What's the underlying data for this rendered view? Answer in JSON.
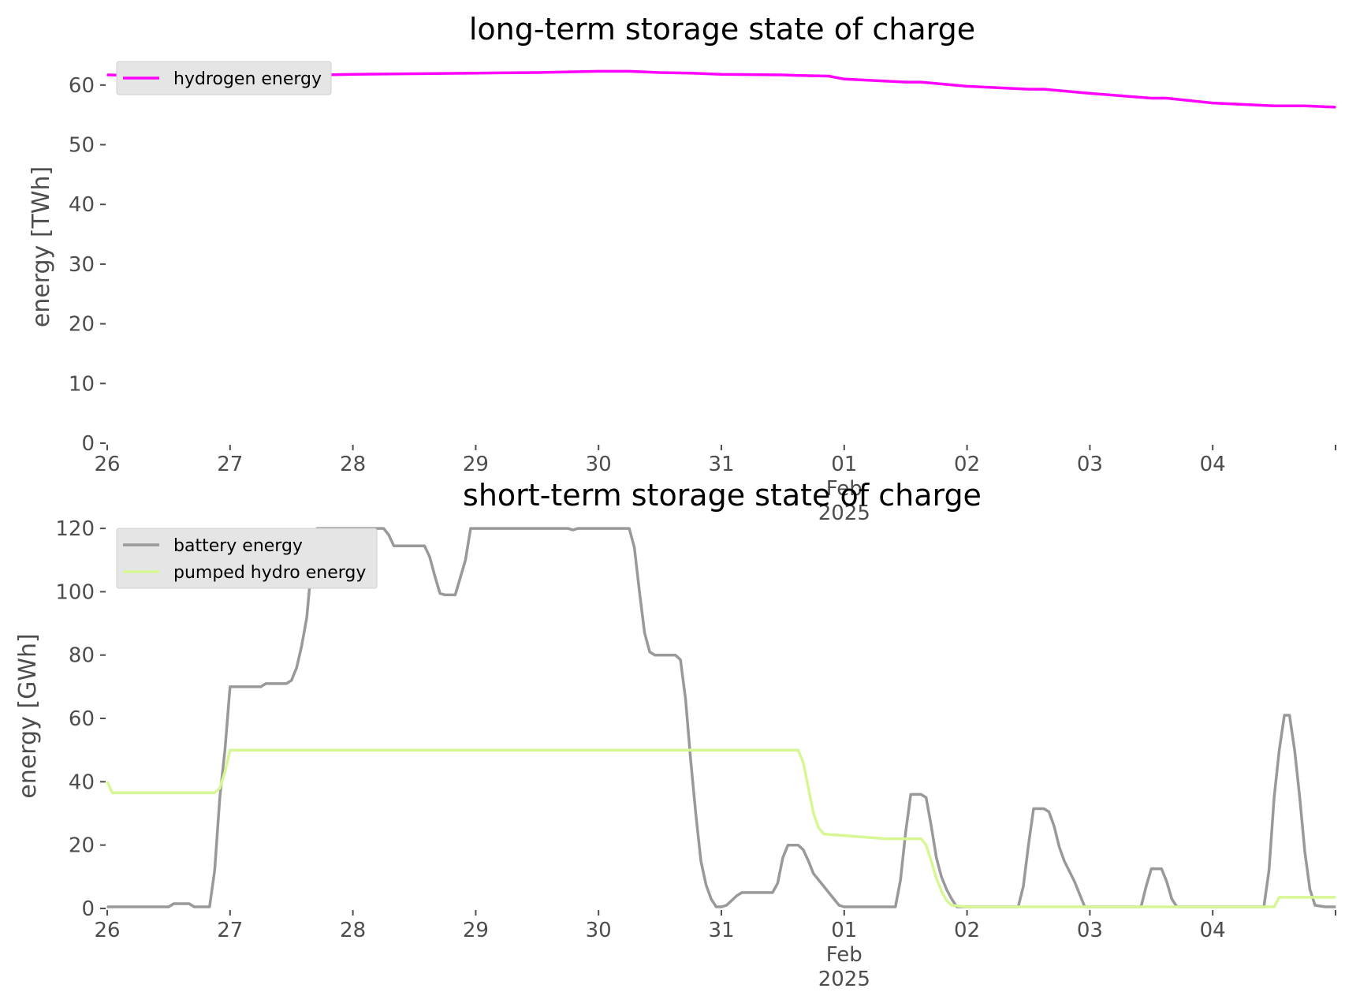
{
  "chart_data": [
    {
      "type": "line",
      "title": "long-term storage state of charge",
      "xlabel": "",
      "ylabel": "energy [TWh]",
      "xlim": [
        "2025-01-26",
        "2025-02-05"
      ],
      "ylim": [
        0,
        65
      ],
      "yticks": [
        0,
        10,
        20,
        30,
        40,
        50,
        60
      ],
      "xticks": [
        {
          "date": "2025-01-26",
          "label": "26"
        },
        {
          "date": "2025-01-27",
          "label": "27"
        },
        {
          "date": "2025-01-28",
          "label": "28"
        },
        {
          "date": "2025-01-29",
          "label": "29"
        },
        {
          "date": "2025-01-30",
          "label": "30"
        },
        {
          "date": "2025-01-31",
          "label": "31"
        },
        {
          "date": "2025-02-01",
          "label": "01",
          "sublabels": [
            "Feb",
            "2025"
          ]
        },
        {
          "date": "2025-02-02",
          "label": "02"
        },
        {
          "date": "2025-02-03",
          "label": "03"
        },
        {
          "date": "2025-02-04",
          "label": "04"
        },
        {
          "date": "2025-02-05",
          "label": ""
        }
      ],
      "grid": false,
      "legend_position": "upper-left",
      "series": [
        {
          "name": "hydrogen energy",
          "color": "#ff00ff",
          "points": [
            [
              "2025-01-26 00:00",
              61.7
            ],
            [
              "2025-01-26 12:00",
              61.5
            ],
            [
              "2025-01-27 00:00",
              61.5
            ],
            [
              "2025-01-27 12:00",
              61.6
            ],
            [
              "2025-01-28 00:00",
              61.8
            ],
            [
              "2025-01-28 12:00",
              61.9
            ],
            [
              "2025-01-29 00:00",
              62.0
            ],
            [
              "2025-01-29 12:00",
              62.1
            ],
            [
              "2025-01-30 00:00",
              62.3
            ],
            [
              "2025-01-30 06:00",
              62.3
            ],
            [
              "2025-01-30 12:00",
              62.1
            ],
            [
              "2025-01-30 18:00",
              62.0
            ],
            [
              "2025-01-31 00:00",
              61.8
            ],
            [
              "2025-01-31 12:00",
              61.7
            ],
            [
              "2025-01-31 15:00",
              61.6
            ],
            [
              "2025-01-31 21:00",
              61.5
            ],
            [
              "2025-02-01 00:00",
              61.0
            ],
            [
              "2025-02-01 12:00",
              60.5
            ],
            [
              "2025-02-01 15:00",
              60.5
            ],
            [
              "2025-02-02 00:00",
              59.8
            ],
            [
              "2025-02-02 12:00",
              59.3
            ],
            [
              "2025-02-02 15:00",
              59.3
            ],
            [
              "2025-02-03 00:00",
              58.6
            ],
            [
              "2025-02-03 12:00",
              57.8
            ],
            [
              "2025-02-03 15:00",
              57.8
            ],
            [
              "2025-02-04 00:00",
              57.0
            ],
            [
              "2025-02-04 12:00",
              56.5
            ],
            [
              "2025-02-04 18:00",
              56.5
            ],
            [
              "2025-02-05 00:00",
              56.3
            ]
          ]
        }
      ]
    },
    {
      "type": "line",
      "title": "short-term storage state of charge",
      "xlabel": "",
      "ylabel": "energy [GWh]",
      "xlim": [
        "2025-01-26",
        "2025-02-05"
      ],
      "ylim": [
        0,
        125
      ],
      "yticks": [
        0,
        20,
        40,
        60,
        80,
        100,
        120
      ],
      "xticks": [
        {
          "date": "2025-01-26",
          "label": "26"
        },
        {
          "date": "2025-01-27",
          "label": "27"
        },
        {
          "date": "2025-01-28",
          "label": "28"
        },
        {
          "date": "2025-01-29",
          "label": "29"
        },
        {
          "date": "2025-01-30",
          "label": "30"
        },
        {
          "date": "2025-01-31",
          "label": "31"
        },
        {
          "date": "2025-02-01",
          "label": "01",
          "sublabels": [
            "Feb",
            "2025"
          ]
        },
        {
          "date": "2025-02-02",
          "label": "02"
        },
        {
          "date": "2025-02-03",
          "label": "03"
        },
        {
          "date": "2025-02-04",
          "label": "04"
        },
        {
          "date": "2025-02-05",
          "label": ""
        }
      ],
      "grid": false,
      "legend_position": "upper-left",
      "series": [
        {
          "name": "battery energy",
          "color": "#999999",
          "points": [
            [
              "2025-01-26 00:00",
              0.5
            ],
            [
              "2025-01-26 12:00",
              0.5
            ],
            [
              "2025-01-26 13:00",
              1.5
            ],
            [
              "2025-01-26 16:00",
              1.5
            ],
            [
              "2025-01-26 17:00",
              0.5
            ],
            [
              "2025-01-26 20:00",
              0.5
            ],
            [
              "2025-01-26 21:00",
              12
            ],
            [
              "2025-01-26 22:00",
              35
            ],
            [
              "2025-01-26 23:00",
              50
            ],
            [
              "2025-01-27 00:00",
              70
            ],
            [
              "2025-01-27 06:00",
              70
            ],
            [
              "2025-01-27 07:00",
              71
            ],
            [
              "2025-01-27 11:00",
              71
            ],
            [
              "2025-01-27 12:00",
              72
            ],
            [
              "2025-01-27 13:00",
              76
            ],
            [
              "2025-01-27 14:00",
              83
            ],
            [
              "2025-01-27 15:00",
              92
            ],
            [
              "2025-01-27 16:00",
              110
            ],
            [
              "2025-01-27 17:00",
              120
            ],
            [
              "2025-01-28 06:00",
              120
            ],
            [
              "2025-01-28 07:00",
              118
            ],
            [
              "2025-01-28 08:00",
              114.5
            ],
            [
              "2025-01-28 14:00",
              114.5
            ],
            [
              "2025-01-28 15:00",
              111
            ],
            [
              "2025-01-28 16:00",
              105
            ],
            [
              "2025-01-28 17:00",
              99.5
            ],
            [
              "2025-01-28 18:00",
              99
            ],
            [
              "2025-01-28 20:00",
              99
            ],
            [
              "2025-01-28 22:00",
              110
            ],
            [
              "2025-01-28 23:00",
              120
            ],
            [
              "2025-01-29 18:00",
              120
            ],
            [
              "2025-01-29 19:00",
              119.5
            ],
            [
              "2025-01-29 20:00",
              120
            ],
            [
              "2025-01-30 06:00",
              120
            ],
            [
              "2025-01-30 07:00",
              114
            ],
            [
              "2025-01-30 08:00",
              100
            ],
            [
              "2025-01-30 09:00",
              87
            ],
            [
              "2025-01-30 10:00",
              81
            ],
            [
              "2025-01-30 11:00",
              80
            ],
            [
              "2025-01-30 15:00",
              80
            ],
            [
              "2025-01-30 16:00",
              78.5
            ],
            [
              "2025-01-30 17:00",
              66
            ],
            [
              "2025-01-30 18:00",
              47
            ],
            [
              "2025-01-30 19:00",
              30
            ],
            [
              "2025-01-30 20:00",
              15
            ],
            [
              "2025-01-30 21:00",
              7.5
            ],
            [
              "2025-01-30 22:00",
              3
            ],
            [
              "2025-01-30 23:00",
              0.5
            ],
            [
              "2025-01-31 00:00",
              0.5
            ],
            [
              "2025-01-31 01:00",
              1
            ],
            [
              "2025-01-31 02:00",
              2.5
            ],
            [
              "2025-01-31 03:00",
              4
            ],
            [
              "2025-01-31 04:00",
              5
            ],
            [
              "2025-01-31 10:00",
              5
            ],
            [
              "2025-01-31 11:00",
              8
            ],
            [
              "2025-01-31 12:00",
              16
            ],
            [
              "2025-01-31 13:00",
              20
            ],
            [
              "2025-01-31 15:00",
              20
            ],
            [
              "2025-01-31 16:00",
              18.5
            ],
            [
              "2025-01-31 17:00",
              15
            ],
            [
              "2025-01-31 18:00",
              11
            ],
            [
              "2025-01-31 20:00",
              7
            ],
            [
              "2025-01-31 22:00",
              3
            ],
            [
              "2025-01-31 23:00",
              1
            ],
            [
              "2025-02-01 00:00",
              0.5
            ],
            [
              "2025-02-01 10:00",
              0.5
            ],
            [
              "2025-02-01 11:00",
              9
            ],
            [
              "2025-02-01 12:00",
              24
            ],
            [
              "2025-02-01 13:00",
              36
            ],
            [
              "2025-02-01 15:00",
              36
            ],
            [
              "2025-02-01 16:00",
              35
            ],
            [
              "2025-02-01 17:00",
              26
            ],
            [
              "2025-02-01 18:00",
              16
            ],
            [
              "2025-02-01 19:00",
              10
            ],
            [
              "2025-02-01 20:00",
              6
            ],
            [
              "2025-02-01 21:00",
              3
            ],
            [
              "2025-02-01 22:00",
              0.5
            ],
            [
              "2025-02-02 10:00",
              0.5
            ],
            [
              "2025-02-02 11:00",
              7
            ],
            [
              "2025-02-02 12:00",
              20
            ],
            [
              "2025-02-02 13:00",
              31.5
            ],
            [
              "2025-02-02 15:00",
              31.5
            ],
            [
              "2025-02-02 16:00",
              30.5
            ],
            [
              "2025-02-02 17:00",
              26
            ],
            [
              "2025-02-02 18:00",
              19.5
            ],
            [
              "2025-02-02 19:00",
              15
            ],
            [
              "2025-02-02 21:00",
              8.5
            ],
            [
              "2025-02-02 23:00",
              0.5
            ],
            [
              "2025-02-03 10:00",
              0.5
            ],
            [
              "2025-02-03 11:00",
              7
            ],
            [
              "2025-02-03 12:00",
              12.5
            ],
            [
              "2025-02-03 14:00",
              12.5
            ],
            [
              "2025-02-03 15:00",
              8.5
            ],
            [
              "2025-02-03 16:00",
              3
            ],
            [
              "2025-02-03 17:00",
              0.5
            ],
            [
              "2025-02-04 10:00",
              0.5
            ],
            [
              "2025-02-04 11:00",
              12
            ],
            [
              "2025-02-04 12:00",
              35
            ],
            [
              "2025-02-04 13:00",
              50
            ],
            [
              "2025-02-04 14:00",
              61
            ],
            [
              "2025-02-04 15:00",
              61
            ],
            [
              "2025-02-04 16:00",
              50
            ],
            [
              "2025-02-04 17:00",
              35
            ],
            [
              "2025-02-04 18:00",
              18
            ],
            [
              "2025-02-04 19:00",
              6
            ],
            [
              "2025-02-04 20:00",
              1
            ],
            [
              "2025-02-04 22:00",
              0.5
            ],
            [
              "2025-02-05 00:00",
              0.5
            ]
          ]
        },
        {
          "name": "pumped hydro energy",
          "color": "#d7f794",
          "points": [
            [
              "2025-01-26 00:00",
              40
            ],
            [
              "2025-01-26 01:00",
              36.5
            ],
            [
              "2025-01-26 21:00",
              36.5
            ],
            [
              "2025-01-26 22:00",
              38
            ],
            [
              "2025-01-26 23:00",
              43
            ],
            [
              "2025-01-27 00:00",
              50
            ],
            [
              "2025-01-31 15:00",
              50
            ],
            [
              "2025-01-31 16:00",
              46
            ],
            [
              "2025-01-31 17:00",
              38
            ],
            [
              "2025-01-31 18:00",
              30
            ],
            [
              "2025-01-31 19:00",
              25.5
            ],
            [
              "2025-01-31 20:00",
              23.5
            ],
            [
              "2025-02-01 08:00",
              22
            ],
            [
              "2025-02-01 15:00",
              22
            ],
            [
              "2025-02-01 16:00",
              20
            ],
            [
              "2025-02-01 17:00",
              15
            ],
            [
              "2025-02-01 18:00",
              9.5
            ],
            [
              "2025-02-01 19:00",
              5.5
            ],
            [
              "2025-02-01 20:00",
              2.5
            ],
            [
              "2025-02-01 21:00",
              1
            ],
            [
              "2025-02-02 00:00",
              0.5
            ],
            [
              "2025-02-04 12:00",
              0.5
            ],
            [
              "2025-02-04 13:00",
              3.5
            ],
            [
              "2025-02-05 00:00",
              3.5
            ]
          ]
        }
      ]
    }
  ]
}
